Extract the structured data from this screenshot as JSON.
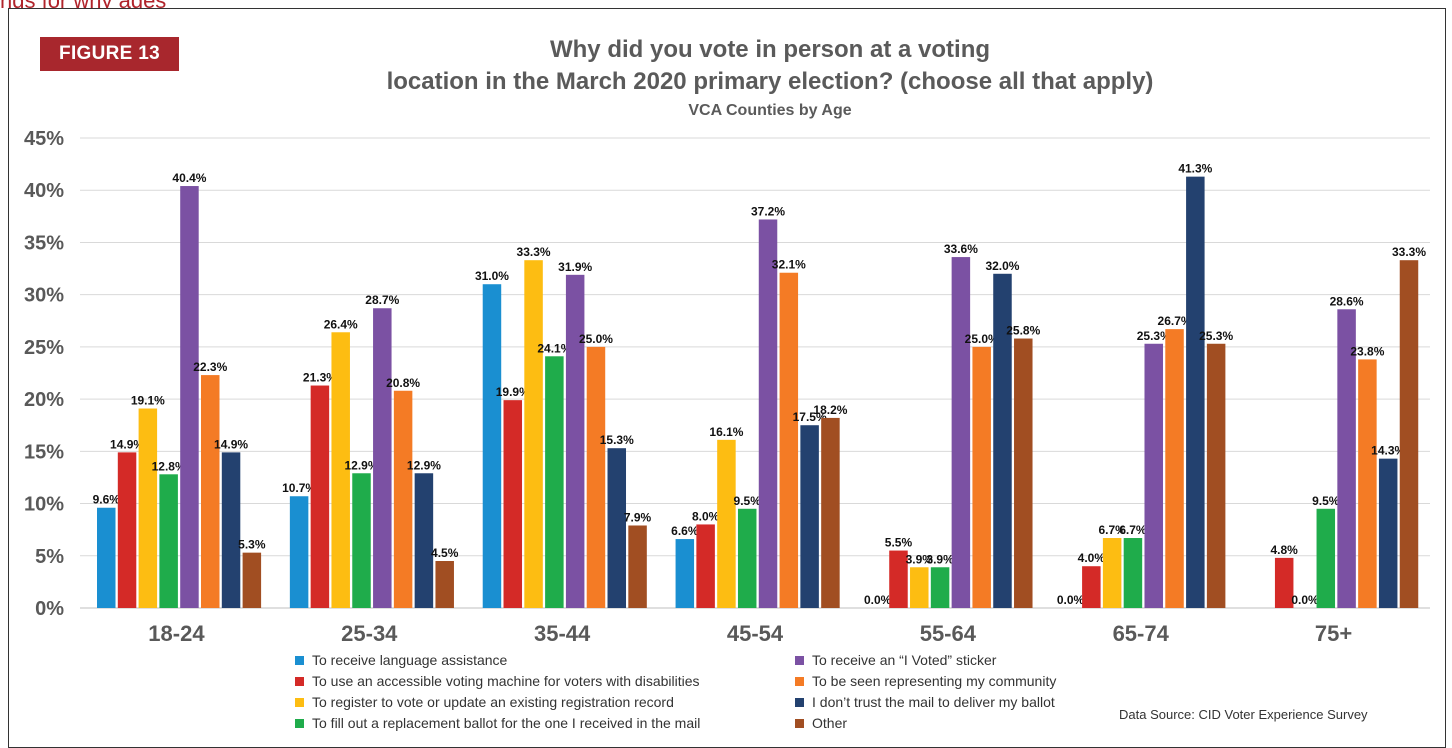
{
  "header": {
    "top_strip_text": "ngs for why ages",
    "figure_label": "FIGURE 13",
    "title_line1": "Why did you vote in person at a voting",
    "title_line2": "location in the March 2020 primary election? (choose all that apply)",
    "subtitle": "VCA Counties by Age"
  },
  "source": "Data Source: CID Voter Experience Survey",
  "chart_data": {
    "type": "bar",
    "title": "Why did you vote in person at a voting location in the March 2020 primary election? (choose all that apply)",
    "subtitle": "VCA Counties by Age",
    "categories": [
      "18-24",
      "25-34",
      "35-44",
      "45-54",
      "55-64",
      "65-74",
      "75+"
    ],
    "y_ticks": [
      "0%",
      "5%",
      "10%",
      "15%",
      "20%",
      "25%",
      "30%",
      "35%",
      "40%",
      "45%"
    ],
    "ylim": [
      0,
      45
    ],
    "grid": true,
    "legend_placement": "bottom",
    "series": [
      {
        "name": "To receive language assistance",
        "color": "#1a8fd1",
        "values": [
          9.6,
          10.7,
          31.0,
          6.6,
          0.0,
          0.0,
          0.0
        ],
        "labels": [
          "9.6%",
          "10.7%",
          "31.0%",
          "6.6%",
          "0.0%",
          "0.0%",
          ""
        ]
      },
      {
        "name": "To use an accessible voting machine for voters with disabilities",
        "color": "#d42a27",
        "values": [
          14.9,
          21.3,
          19.9,
          8.0,
          5.5,
          4.0,
          4.8
        ],
        "labels": [
          "14.9%",
          "21.3%",
          "19.9%",
          "8.0%",
          "5.5%",
          "4.0%",
          "4.8%"
        ]
      },
      {
        "name": "To register to vote or update an existing registration record",
        "color": "#fdbd12",
        "values": [
          19.1,
          26.4,
          33.3,
          16.1,
          3.9,
          6.7,
          0.0
        ],
        "labels": [
          "19.1%",
          "26.4%",
          "33.3%",
          "16.1%",
          "3.9%",
          "6.7%",
          "0.0%"
        ]
      },
      {
        "name": "To fill out a replacement ballot for the one I received in the mail",
        "color": "#1fac4b",
        "values": [
          12.8,
          12.9,
          24.1,
          9.5,
          3.9,
          6.7,
          9.5
        ],
        "labels": [
          "12.8%",
          "12.9%",
          "24.1%",
          "9.5%",
          "3.9%",
          "6.7%",
          "9.5%"
        ]
      },
      {
        "name": "To receive an “I Voted” sticker",
        "color": "#7b51a3",
        "values": [
          40.4,
          28.7,
          31.9,
          37.2,
          33.6,
          25.3,
          28.6
        ],
        "labels": [
          "40.4%",
          "28.7%",
          "31.9%",
          "37.2%",
          "33.6%",
          "25.3%",
          "28.6%"
        ]
      },
      {
        "name": "To be seen representing my community",
        "color": "#f47b25",
        "values": [
          22.3,
          20.8,
          25.0,
          32.1,
          25.0,
          26.7,
          23.8
        ],
        "labels": [
          "22.3%",
          "20.8%",
          "25.0%",
          "32.1%",
          "25.0%",
          "26.7%",
          "23.8%"
        ]
      },
      {
        "name": " I don’t trust the mail to deliver my ballot",
        "color": "#23416f",
        "values": [
          14.9,
          12.9,
          15.3,
          17.5,
          32.0,
          41.3,
          14.3
        ],
        "labels": [
          "14.9%",
          "12.9%",
          "15.3%",
          "17.5%",
          "32.0%",
          "41.3%",
          "14.3%"
        ]
      },
      {
        "name": "Other",
        "color": "#a14e22",
        "values": [
          5.3,
          4.5,
          7.9,
          18.2,
          25.8,
          25.3,
          33.3
        ],
        "labels": [
          "5.3%",
          "4.5%",
          "7.9%",
          "18.2%",
          "25.8%",
          "25.3%",
          "33.3%"
        ]
      }
    ]
  }
}
